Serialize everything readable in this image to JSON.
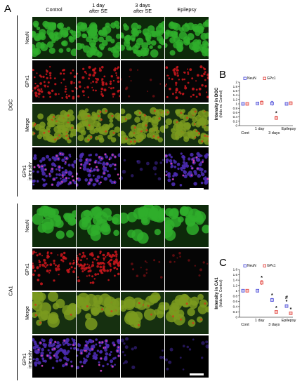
{
  "figure": {
    "panel_a_letter": "A",
    "panel_b_letter": "B",
    "panel_c_letter": "C",
    "columns": [
      "Control",
      "1 day\nafter SE",
      "3 days\nafter SE",
      "Epilepsy"
    ],
    "dgc_group_label": "DGC",
    "ca1_group_label": "CA1",
    "dgc_rows": [
      "NeuN",
      "GPx1",
      "Merge",
      "GPx1\nintensity"
    ],
    "ca1_rows": [
      "NeuN",
      "GPx1",
      "Merge",
      "GPx1\nintensity"
    ],
    "tile_colors": {
      "neun": "#2fae2b",
      "gpx1": "#c4161c",
      "merge": "#7a9a1e",
      "intensity": "#4a2bb0",
      "dark": "#050505"
    }
  },
  "chart_data": [
    {
      "type": "scatter",
      "panel": "B",
      "ylabel": "Intensity in DGC\n(folds vs. Control)",
      "ylim": [
        0,
        2.0
      ],
      "yticks": [
        "0",
        "0.2",
        "0.4",
        "0.6",
        "0.8",
        "1",
        "1.2",
        "1.4",
        "1.6",
        "1.8",
        "2"
      ],
      "x_top_labels": [
        "1 day",
        "Epilepsy"
      ],
      "x_bottom_labels": [
        "Cont",
        "3 days"
      ],
      "legend": [
        "NeuN",
        "GPx1"
      ],
      "legend_colors": [
        "#3b3bd6",
        "#e0302a"
      ],
      "series": [
        {
          "name": "NeuN",
          "values": [
            1.0,
            1.02,
            1.02,
            1.0
          ],
          "errors": [
            0.05,
            0.06,
            0.1,
            0.05
          ]
        },
        {
          "name": "GPx1",
          "values": [
            1.0,
            1.05,
            0.35,
            1.03
          ],
          "errors": [
            0.05,
            0.08,
            0.08,
            0.06
          ]
        }
      ],
      "annotations": [
        {
          "index": 2,
          "series": 1,
          "text": "*"
        }
      ]
    },
    {
      "type": "scatter",
      "panel": "C",
      "ylabel": "Intensity in CA1\n(folds vs. Control)",
      "ylim": [
        0,
        1.8
      ],
      "yticks": [
        "0",
        "0.2",
        "0.4",
        "0.6",
        "0.8",
        "1",
        "1.2",
        "1.4",
        "1.6",
        "1.8"
      ],
      "x_top_labels": [
        "1 day",
        "Epilepsy"
      ],
      "x_bottom_labels": [
        "Cont",
        "3 days"
      ],
      "legend": [
        "NeuN",
        "GPx1"
      ],
      "legend_colors": [
        "#3b3bd6",
        "#e0302a"
      ],
      "series": [
        {
          "name": "NeuN",
          "values": [
            1.0,
            1.0,
            0.65,
            0.42
          ],
          "errors": [
            0.03,
            0.04,
            0.06,
            0.05
          ]
        },
        {
          "name": "GPx1",
          "values": [
            1.0,
            1.3,
            0.2,
            0.15
          ],
          "errors": [
            0.03,
            0.08,
            0.04,
            0.03
          ]
        }
      ],
      "annotations": [
        {
          "index": 1,
          "series": 1,
          "text": "*"
        },
        {
          "index": 2,
          "series": 0,
          "text": "*"
        },
        {
          "index": 2,
          "series": 1,
          "text": "*"
        },
        {
          "index": 3,
          "series": 0,
          "text": "#\n*"
        },
        {
          "index": 3,
          "series": 1,
          "text": "*"
        }
      ]
    }
  ]
}
